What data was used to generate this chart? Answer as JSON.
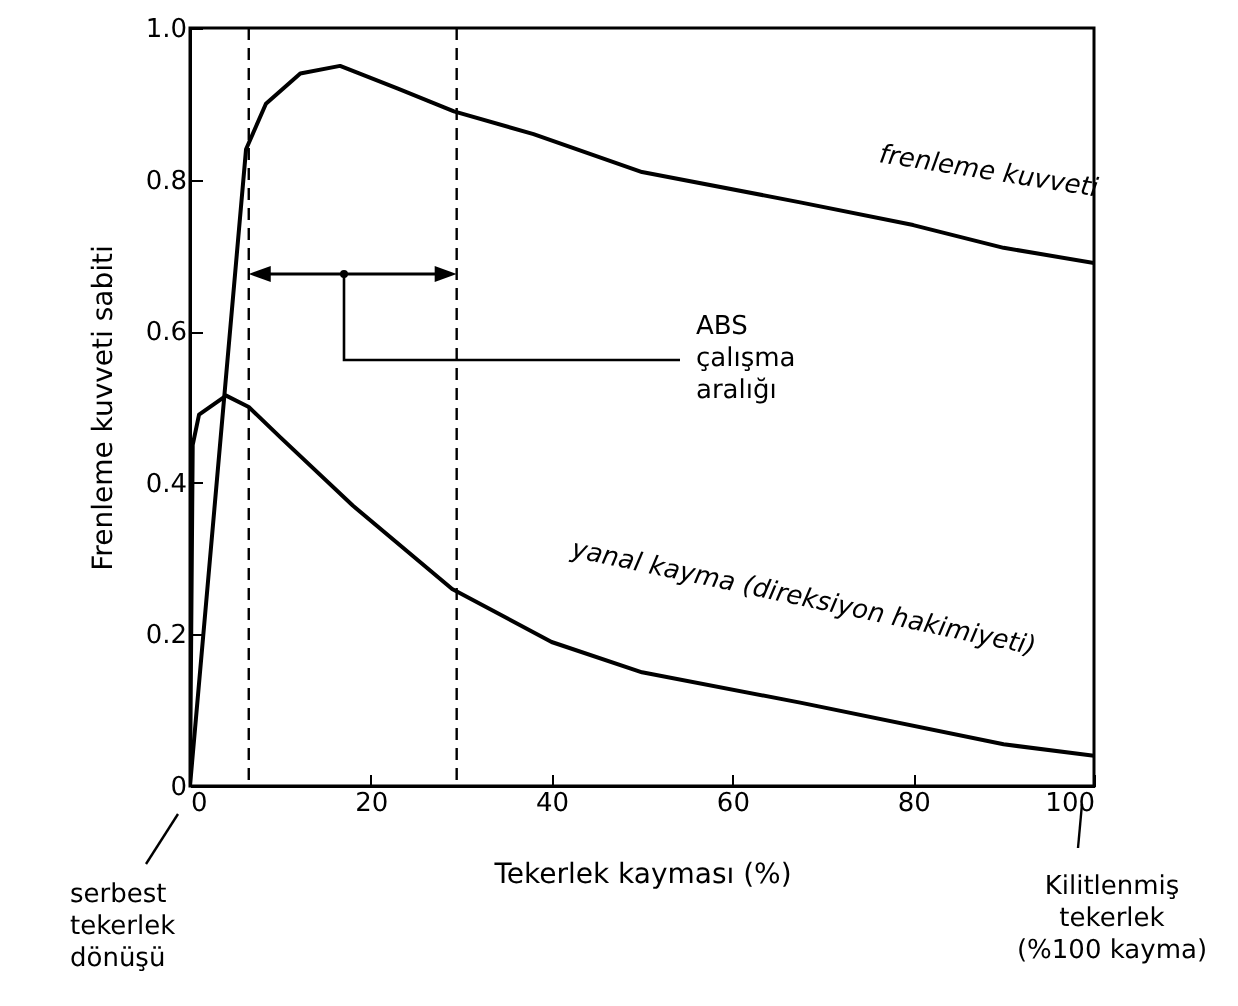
{
  "chart_data": {
    "type": "line",
    "xlabel": "Tekerlek kayması (%)",
    "ylabel": "Frenleme kuvveti sabiti",
    "x": [
      0,
      6.2,
      8.4,
      12.2,
      16.6,
      23,
      29.2,
      38,
      50,
      67.5,
      80,
      90,
      100
    ],
    "series": [
      {
        "name": "frenleme kuvveti",
        "color": "#000000",
        "values": [
          0,
          0.84,
          0.9,
          0.94,
          0.95,
          0.92,
          0.89,
          0.86,
          0.81,
          0.77,
          0.74,
          0.71,
          0.69
        ]
      },
      {
        "name": "yanal kayma (direksiyon hakimiyeti)",
        "color": "#000000",
        "x": [
          0,
          0.3,
          1,
          4,
          6.5,
          10,
          18,
          29,
          40,
          50,
          67.5,
          90,
          100
        ],
        "values": [
          0,
          0.45,
          0.49,
          0.515,
          0.5,
          0.46,
          0.37,
          0.26,
          0.19,
          0.15,
          0.11,
          0.055,
          0.04
        ]
      }
    ],
    "xlim": [
      0,
      100
    ],
    "xticks": [
      0,
      20,
      40,
      60,
      80,
      100
    ],
    "ylim": [
      0,
      1
    ],
    "yticks": [
      0,
      0.2,
      0.4,
      0.6,
      0.8,
      {
        "value": 1,
        "label": "1.0"
      }
    ],
    "ref_lines": [
      {
        "axis": "x",
        "value": 6.5,
        "line_style": "dashed"
      },
      {
        "axis": "x",
        "value": 29.5,
        "line_style": "dashed"
      }
    ],
    "annotations": [
      "ABS çalışma aralığı",
      "serbest tekerlek dönüşü",
      "Kilitlenmiş tekerlek (%100 kayma)"
    ],
    "grid": false,
    "marker": "none",
    "line_style": "solid"
  }
}
